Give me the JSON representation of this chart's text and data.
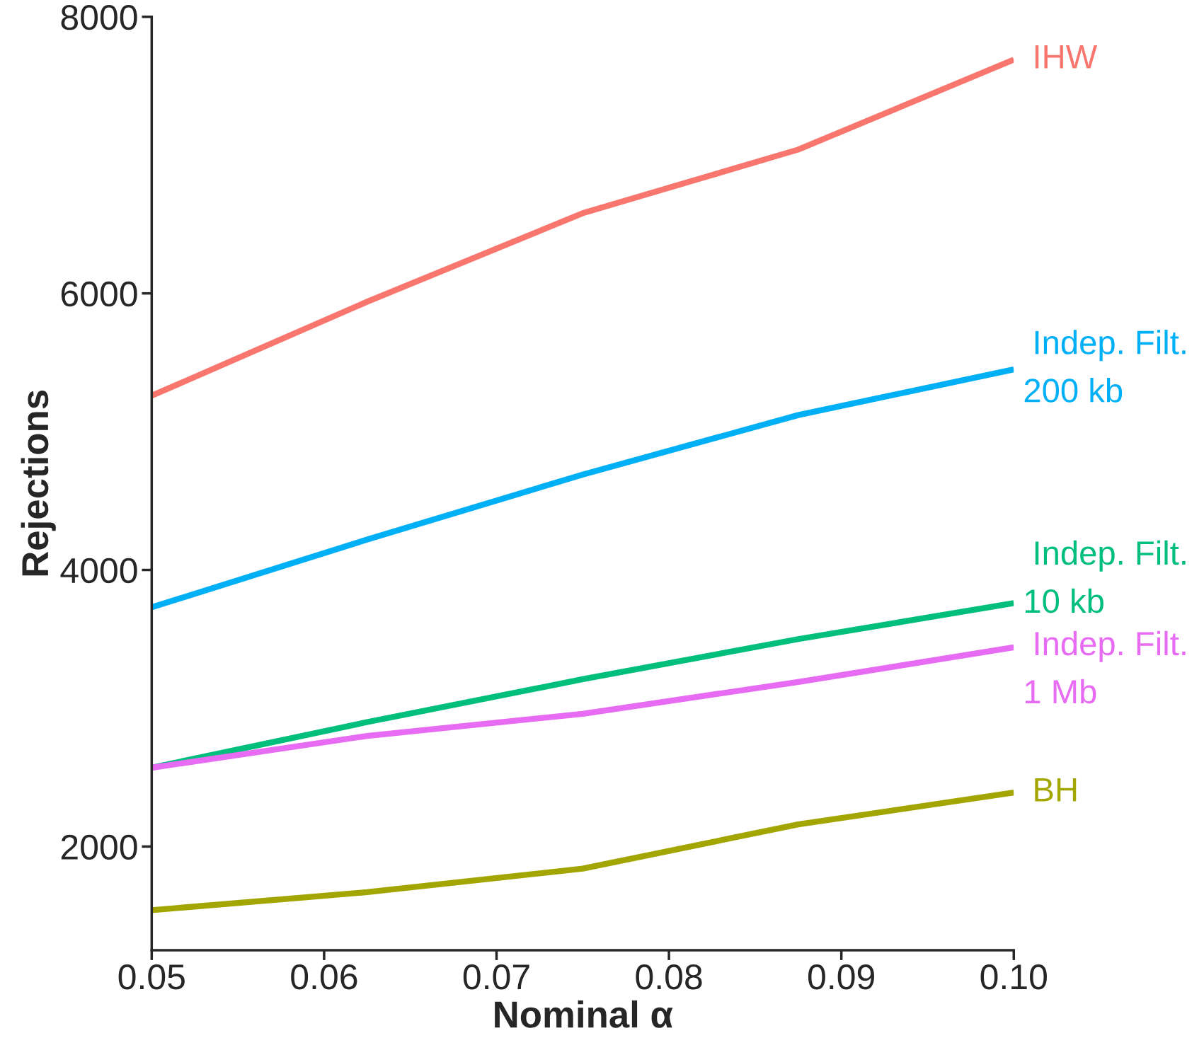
{
  "chart_data": {
    "type": "line",
    "xlabel": "Nominal α",
    "ylabel": "Rejections",
    "xlim": [
      0.05,
      0.1
    ],
    "xticks": [
      0.05,
      0.06,
      0.07,
      0.08,
      0.09,
      {
        "value": 0.1,
        "label": "0.10"
      }
    ],
    "ylim": [
      1250,
      8000
    ],
    "yticks": [
      2000,
      4000,
      6000,
      8000
    ],
    "grid": false,
    "legend": false,
    "x": [
      0.05,
      0.0625,
      0.075,
      0.0875,
      0.1
    ],
    "series": [
      {
        "name": "IHW",
        "color": "#f8766d",
        "values": [
          5260,
          5940,
          6580,
          7040,
          7690
        ]
      },
      {
        "name": "Indep. Filt.\n 200 kb",
        "color": "#00b0f6",
        "values": [
          3730,
          4220,
          4690,
          5120,
          5450
        ]
      },
      {
        "name": "Indep. Filt.\n 10 kb",
        "color": "#00bf7d",
        "values": [
          2570,
          2900,
          3210,
          3500,
          3760
        ]
      },
      {
        "name": "Indep. Filt.\n 1 Mb",
        "color": "#e76bf3",
        "values": [
          2570,
          2800,
          2960,
          3190,
          3440
        ]
      },
      {
        "name": "BH",
        "color": "#a3a500",
        "values": [
          1540,
          1670,
          1840,
          2160,
          2390
        ]
      }
    ]
  }
}
